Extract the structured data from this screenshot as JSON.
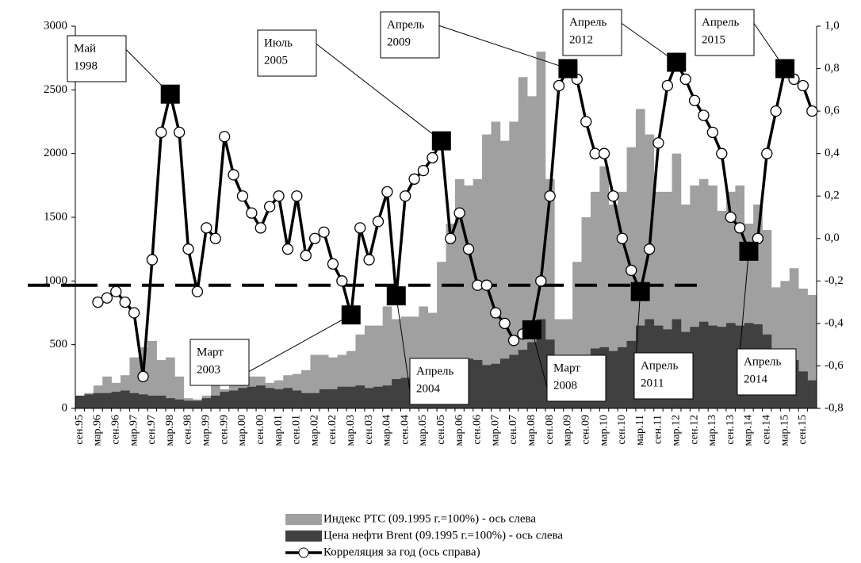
{
  "chart_data": {
    "type": "bar-line",
    "categories": [
      "сен.95",
      null,
      "мар.96",
      null,
      "сен.96",
      null,
      "мар.97",
      null,
      "сен.97",
      null,
      "мар.98",
      null,
      "сен.98",
      null,
      "мар.99",
      null,
      "сен.99",
      null,
      "мар.00",
      null,
      "сен.00",
      null,
      "мар.01",
      null,
      "сен.01",
      null,
      "мар.02",
      null,
      "сен.02",
      null,
      "мар.03",
      null,
      "сен.03",
      null,
      "мар.04",
      null,
      "сен.04",
      null,
      "мар.05",
      null,
      "сен.05",
      null,
      "мар.06",
      null,
      "сен.06",
      null,
      "мар.07",
      null,
      "сен.07",
      null,
      "мар.08",
      null,
      "сен.08",
      null,
      "мар.09",
      null,
      "сен.09",
      null,
      "мар.10",
      null,
      "сен.10",
      null,
      "мар.11",
      null,
      "сен.11",
      null,
      "мар.12",
      null,
      "сен.12",
      null,
      "мар.13",
      null,
      "сен.13",
      null,
      "мар.14",
      null,
      "сен.14",
      null,
      "мар.15",
      null,
      "сен.15",
      null
    ],
    "series": [
      {
        "name": "Индекс РТС (09.1995 г.=100%) - ось слева",
        "color": "#a0a0a0",
        "kind": "bar",
        "values": [
          100,
          120,
          180,
          250,
          200,
          260,
          400,
          480,
          530,
          380,
          400,
          250,
          80,
          70,
          100,
          180,
          150,
          260,
          300,
          250,
          250,
          200,
          220,
          260,
          270,
          300,
          420,
          420,
          400,
          420,
          450,
          580,
          650,
          650,
          800,
          700,
          720,
          720,
          800,
          750,
          1150,
          1450,
          1800,
          1750,
          1800,
          2150,
          2250,
          2100,
          2250,
          2600,
          2450,
          2800,
          1800,
          700,
          700,
          1150,
          1500,
          1700,
          1900,
          1600,
          1700,
          2050,
          2350,
          2150,
          1700,
          1700,
          2000,
          1600,
          1750,
          1800,
          1750,
          1550,
          1700,
          1750,
          1450,
          1600,
          1400,
          950,
          1000,
          1100,
          940,
          890
        ]
      },
      {
        "name": "Цена нефти Brent (09.1995 г.=100%) - ось слева",
        "color": "#404040",
        "kind": "bar",
        "values": [
          100,
          110,
          120,
          120,
          130,
          140,
          120,
          110,
          100,
          100,
          80,
          70,
          60,
          60,
          80,
          100,
          130,
          140,
          160,
          170,
          180,
          160,
          150,
          160,
          140,
          120,
          120,
          150,
          150,
          170,
          170,
          180,
          160,
          170,
          180,
          230,
          240,
          260,
          280,
          300,
          330,
          340,
          380,
          390,
          380,
          340,
          350,
          390,
          420,
          460,
          520,
          700,
          540,
          250,
          300,
          410,
          420,
          470,
          480,
          450,
          480,
          530,
          650,
          700,
          650,
          620,
          700,
          600,
          640,
          680,
          650,
          640,
          670,
          650,
          670,
          660,
          580,
          400,
          330,
          380,
          290,
          220
        ]
      },
      {
        "name": "Корреляция за год (ось справа)",
        "color": "#000000",
        "kind": "line",
        "axis": "y2",
        "values": [
          null,
          null,
          -0.3,
          -0.28,
          -0.25,
          -0.3,
          -0.35,
          -0.65,
          -0.1,
          0.5,
          0.68,
          0.5,
          -0.05,
          -0.25,
          0.05,
          0.0,
          0.48,
          0.3,
          0.2,
          0.12,
          0.05,
          0.15,
          0.2,
          -0.05,
          0.2,
          -0.08,
          0.0,
          0.03,
          -0.12,
          -0.2,
          -0.36,
          0.05,
          -0.1,
          0.08,
          0.22,
          -0.27,
          0.2,
          0.28,
          0.32,
          0.38,
          0.46,
          0.0,
          0.12,
          -0.05,
          -0.22,
          -0.22,
          -0.35,
          -0.4,
          -0.48,
          -0.45,
          -0.43,
          -0.2,
          0.2,
          0.72,
          0.8,
          0.75,
          0.55,
          0.4,
          0.4,
          0.2,
          0.0,
          -0.15,
          -0.25,
          -0.05,
          0.45,
          0.72,
          0.83,
          0.75,
          0.65,
          0.58,
          0.5,
          0.4,
          0.1,
          0.05,
          -0.06,
          0.0,
          0.4,
          0.6,
          0.8,
          0.75,
          0.72,
          0.6
        ]
      }
    ],
    "ylim": [
      0,
      3000
    ],
    "yticks": [
      0,
      500,
      1000,
      1500,
      2000,
      2500,
      3000
    ],
    "y2lim": [
      -0.8,
      1.0
    ],
    "y2ticks": [
      {
        "value": -0.8,
        "label": "-0,8"
      },
      {
        "value": -0.6,
        "label": "-0,6"
      },
      {
        "value": -0.4,
        "label": "-0,4"
      },
      {
        "value": -0.2,
        "label": "-0,2"
      },
      {
        "value": 0.0,
        "label": "0,0"
      },
      {
        "value": 0.2,
        "label": "0,2"
      },
      {
        "value": 0.4,
        "label": "0,4"
      },
      {
        "value": 0.6,
        "label": "0,6"
      },
      {
        "value": 0.8,
        "label": "0,8"
      },
      {
        "value": 1.0,
        "label": "1,0"
      }
    ],
    "reference_line": {
      "value": -0.22,
      "axis": "y2"
    },
    "annotations": [
      {
        "text": [
          "Май",
          "1998"
        ],
        "index": 10
      },
      {
        "text": [
          "Март",
          "2003"
        ],
        "index": 30
      },
      {
        "text": [
          "Апрель",
          "2004"
        ],
        "index": 35
      },
      {
        "text": [
          "Июль",
          "2005"
        ],
        "index": 40
      },
      {
        "text": [
          "Март",
          "2008"
        ],
        "index": 50
      },
      {
        "text": [
          "Апрель",
          "2009"
        ],
        "index": 54
      },
      {
        "text": [
          "Апрель",
          "2011"
        ],
        "index": 62
      },
      {
        "text": [
          "Апрель",
          "2012"
        ],
        "index": 66
      },
      {
        "text": [
          "Апрель",
          "2014"
        ],
        "index": 74
      },
      {
        "text": [
          "Апрель",
          "2015"
        ],
        "index": 78
      }
    ],
    "legend": "bottom"
  }
}
